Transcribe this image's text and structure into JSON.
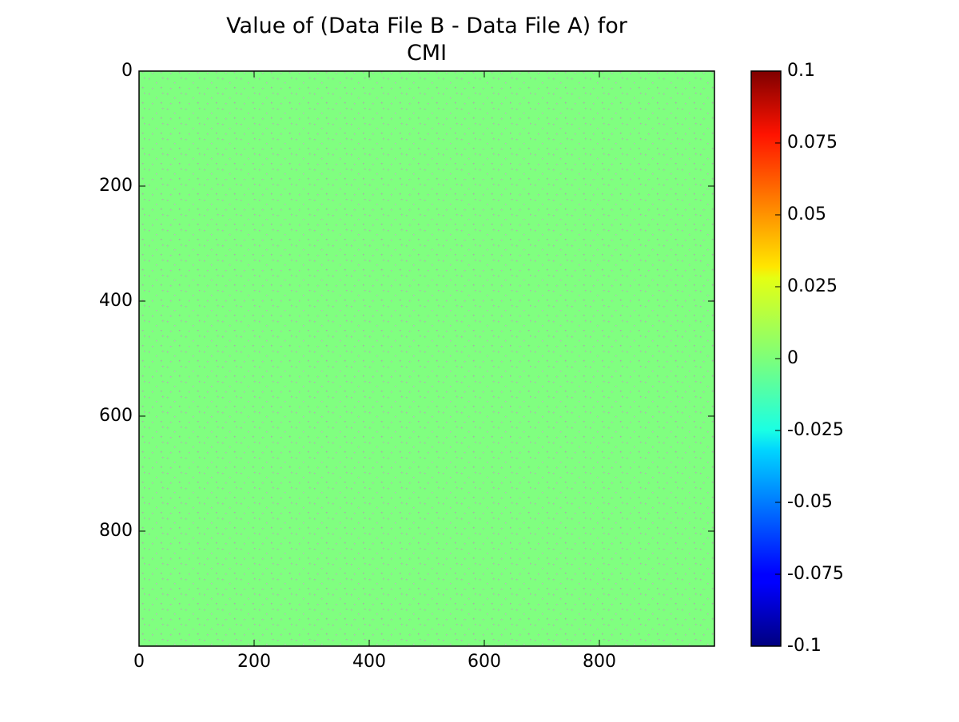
{
  "chart_data": {
    "type": "heatmap",
    "title": "Value of (Data File B - Data File A) for\nCMI",
    "values": [
      [
        0
      ]
    ],
    "xlim": [
      0,
      1000
    ],
    "ylim": [
      1000,
      0
    ],
    "xticks": [
      0,
      200,
      400,
      600,
      800
    ],
    "yticks": [
      0,
      200,
      400,
      600,
      800
    ],
    "colormap": "jet",
    "clim": [
      -0.1,
      0.1
    ],
    "cticks": [
      -0.1,
      -0.075,
      -0.05,
      -0.025,
      0,
      0.025,
      0.05,
      0.075,
      0.1
    ]
  }
}
